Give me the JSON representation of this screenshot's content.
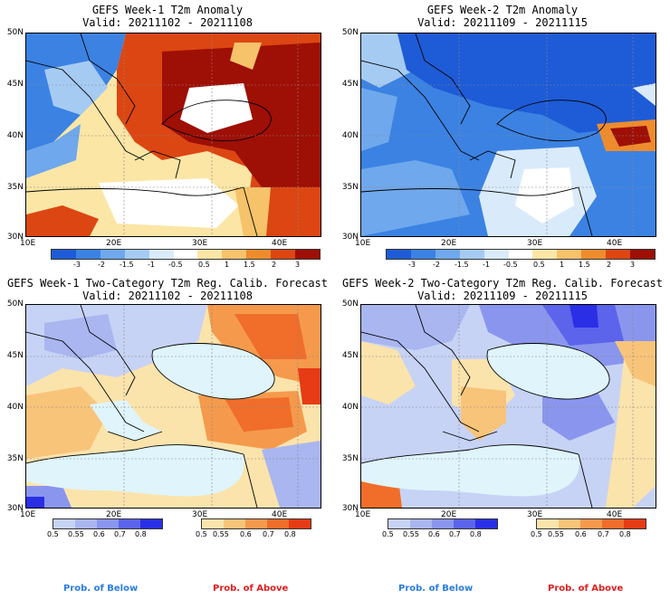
{
  "panels": [
    {
      "title": "GEFS Week-1 T2m Anomaly",
      "valid": "Valid: 20211102 - 20211108"
    },
    {
      "title": "GEFS Week-2 T2m Anomaly",
      "valid": "Valid: 20211109 - 20211115"
    },
    {
      "title": "GEFS Week-1 Two-Category T2m Reg. Calib. Forecast",
      "valid": "Valid: 20211102 - 20211108"
    },
    {
      "title": "GEFS Week-2 Two-Category T2m Reg. Calib. Forecast",
      "valid": "Valid: 20211109 - 20211115"
    }
  ],
  "axes": {
    "lat_labels": [
      "50N",
      "45N",
      "40N",
      "35N",
      "30N"
    ],
    "lon_labels": [
      "10E",
      "20E",
      "30E",
      "40E"
    ]
  },
  "anomaly_colorbar": {
    "labels": [
      "-3",
      "-2",
      "-1.5",
      "-1",
      "-0.5",
      "0.5",
      "1",
      "1.5",
      "2",
      "3"
    ],
    "colors": [
      "#1e5bd6",
      "#3b82e3",
      "#6fa8ec",
      "#a6cbf3",
      "#d9ebfb",
      "#ffffff",
      "#fbe6a6",
      "#f6c26a",
      "#ee8c2d",
      "#dc4612",
      "#9e0f05"
    ]
  },
  "prob_colorbar": {
    "below_labels": [
      "0.5",
      "0.55",
      "0.6",
      "0.7",
      "0.8"
    ],
    "above_labels": [
      "0.5",
      "0.55",
      "0.6",
      "0.7",
      "0.8"
    ],
    "below_colors": [
      "#c7d3f5",
      "#a9b6f0",
      "#8a96ee",
      "#5b64ea",
      "#2a2fe6"
    ],
    "above_colors": [
      "#fbe3ac",
      "#f8c47a",
      "#f59a4c",
      "#f06d2a",
      "#e63b14"
    ]
  },
  "legend": {
    "below": "Prob. of Below",
    "above": "Prob. of Above",
    "below_color": "#2a7de1",
    "above_color": "#e02020"
  }
}
